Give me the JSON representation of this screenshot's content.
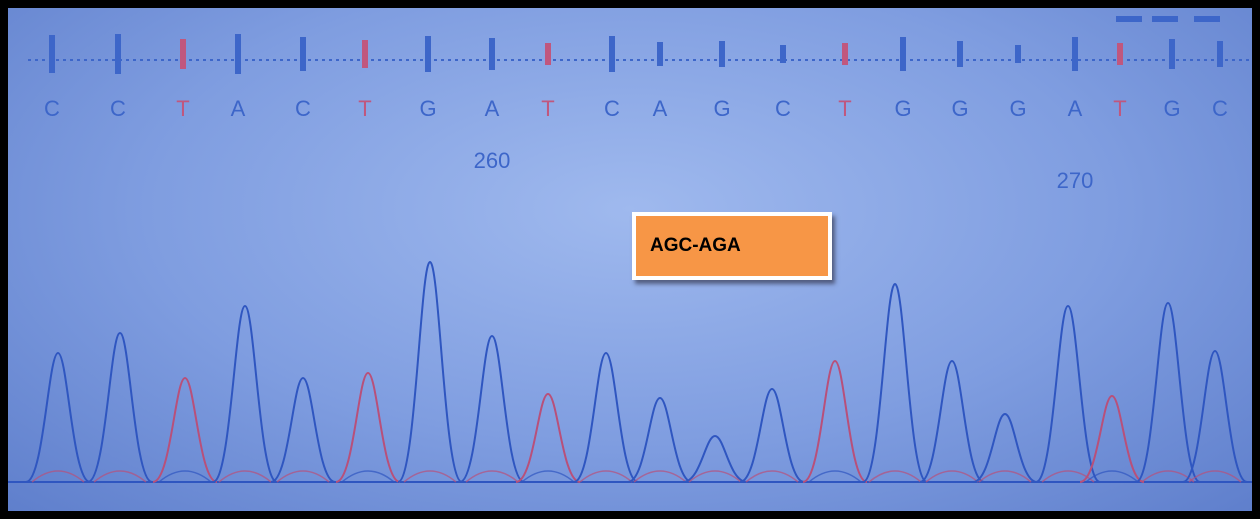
{
  "sequence": {
    "bases": [
      {
        "letter": "C",
        "color": "#3d66c9"
      },
      {
        "letter": "C",
        "color": "#3d66c9"
      },
      {
        "letter": "T",
        "color": "#c0577e"
      },
      {
        "letter": "A",
        "color": "#3d66c9"
      },
      {
        "letter": "C",
        "color": "#3d66c9"
      },
      {
        "letter": "T",
        "color": "#c0577e"
      },
      {
        "letter": "G",
        "color": "#3d66c9"
      },
      {
        "letter": "A",
        "color": "#3d66c9"
      },
      {
        "letter": "T",
        "color": "#c0577e"
      },
      {
        "letter": "C",
        "color": "#3d66c9"
      },
      {
        "letter": "A",
        "color": "#3d66c9"
      },
      {
        "letter": "G",
        "color": "#3d66c9"
      },
      {
        "letter": "C",
        "color": "#3d66c9"
      },
      {
        "letter": "T",
        "color": "#c0577e"
      },
      {
        "letter": "G",
        "color": "#3d66c9"
      },
      {
        "letter": "G",
        "color": "#3d66c9"
      },
      {
        "letter": "G",
        "color": "#3d66c9"
      },
      {
        "letter": "A",
        "color": "#3d66c9"
      },
      {
        "letter": "T",
        "color": "#c0577e"
      },
      {
        "letter": "G",
        "color": "#3d66c9"
      },
      {
        "letter": "C",
        "color": "#3d66c9"
      }
    ],
    "positions": [
      "260",
      "270"
    ]
  },
  "annotation": {
    "label": "AGC-AGA"
  }
}
